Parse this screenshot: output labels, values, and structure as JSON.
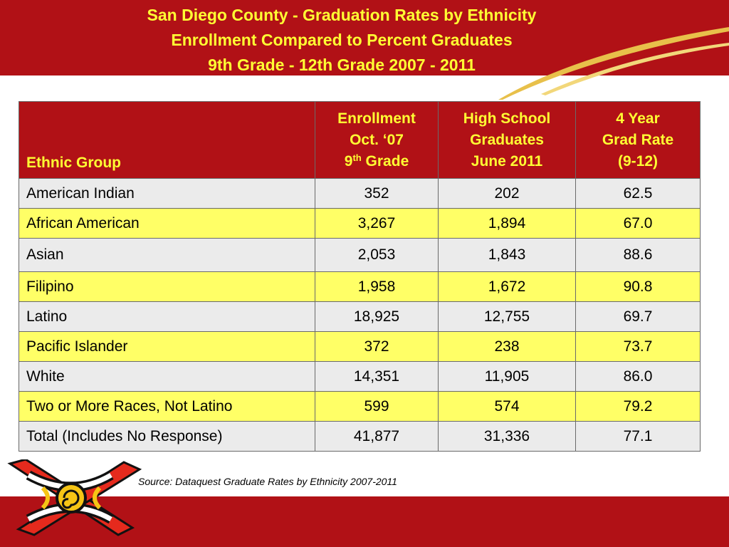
{
  "title": {
    "line1": "San Diego County - Graduation Rates by Ethnicity",
    "line2": "Enrollment Compared to Percent  Graduates",
    "line3": "9th Grade - 12th Grade  2007 - 2011"
  },
  "table": {
    "headers": {
      "ethnic_group": "Ethnic Group",
      "enrollment": {
        "l1": "Enrollment",
        "l2": "Oct. ‘07",
        "l3_prefix": "9",
        "l3_sup": "th",
        "l3_suffix": " Grade"
      },
      "graduates": {
        "l1": "High School",
        "l2": "Graduates",
        "l3": "June 2011"
      },
      "grad_rate": {
        "l1": "4 Year",
        "l2": "Grad Rate",
        "l3": "(9-12)"
      }
    },
    "rows": [
      {
        "group": "American Indian",
        "enrollment": "352",
        "graduates": "202",
        "rate": "62.5"
      },
      {
        "group": "African American",
        "enrollment": "3,267",
        "graduates": "1,894",
        "rate": "67.0"
      },
      {
        "group": "Asian",
        "enrollment": "2,053",
        "graduates": "1,843",
        "rate": "88.6"
      },
      {
        "group": "Filipino",
        "enrollment": "1,958",
        "graduates": "1,672",
        "rate": "90.8"
      },
      {
        "group": "Latino",
        "enrollment": "18,925",
        "graduates": "12,755",
        "rate": "69.7"
      },
      {
        "group": "Pacific Islander",
        "enrollment": "372",
        "graduates": "238",
        "rate": "73.7"
      },
      {
        "group": "White",
        "enrollment": "14,351",
        "graduates": "11,905",
        "rate": "86.0"
      },
      {
        "group": "Two or More Races, Not Latino",
        "enrollment": "599",
        "graduates": "574",
        "rate": "79.2"
      },
      {
        "group": "Total (Includes No Response)",
        "enrollment": "41,877",
        "graduates": "31,336",
        "rate": "77.1"
      }
    ]
  },
  "source": "Source: Dataquest Graduate Rates by Ethnicity 2007-2011",
  "colors": {
    "brand_red": "#b11116",
    "title_yellow": "#ffff33",
    "row_yellow": "#ffff66",
    "row_gray": "#ebebeb"
  },
  "icons": {
    "logo": "aztec-knot-logo-icon",
    "swoosh": "gold-swoosh-icon"
  }
}
